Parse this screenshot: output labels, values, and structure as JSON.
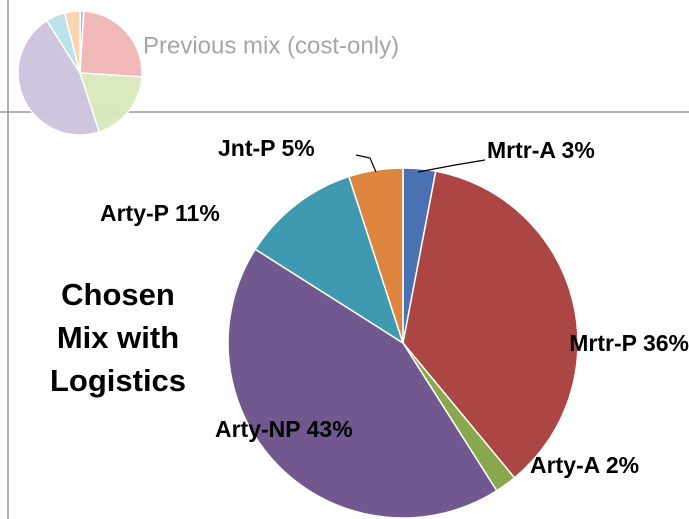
{
  "chart_data": [
    {
      "type": "pie",
      "title": "Previous mix (cost-only)",
      "values": [
        1,
        25,
        19,
        46,
        5,
        4
      ],
      "colors": [
        "#a9bbdc",
        "#f0b6b5",
        "#d9e8bb",
        "#cdc2de",
        "#b9e1ea",
        "#fbd2ad"
      ]
    },
    {
      "type": "pie",
      "title": "Chosen Mix with Logistics",
      "categories": [
        "Mrtr-A",
        "Mrtr-P",
        "Arty-A",
        "Arty-NP",
        "Arty-P",
        "Jnt-P"
      ],
      "values": [
        3,
        36,
        2,
        43,
        11,
        5
      ],
      "value_labels": [
        "3%",
        "36%",
        "2%",
        "43%",
        "11%",
        "5%"
      ],
      "colors": [
        "#4a72b2",
        "#ab4644",
        "#89a74c",
        "#71598f",
        "#3e99b1",
        "#dc853f"
      ]
    }
  ]
}
